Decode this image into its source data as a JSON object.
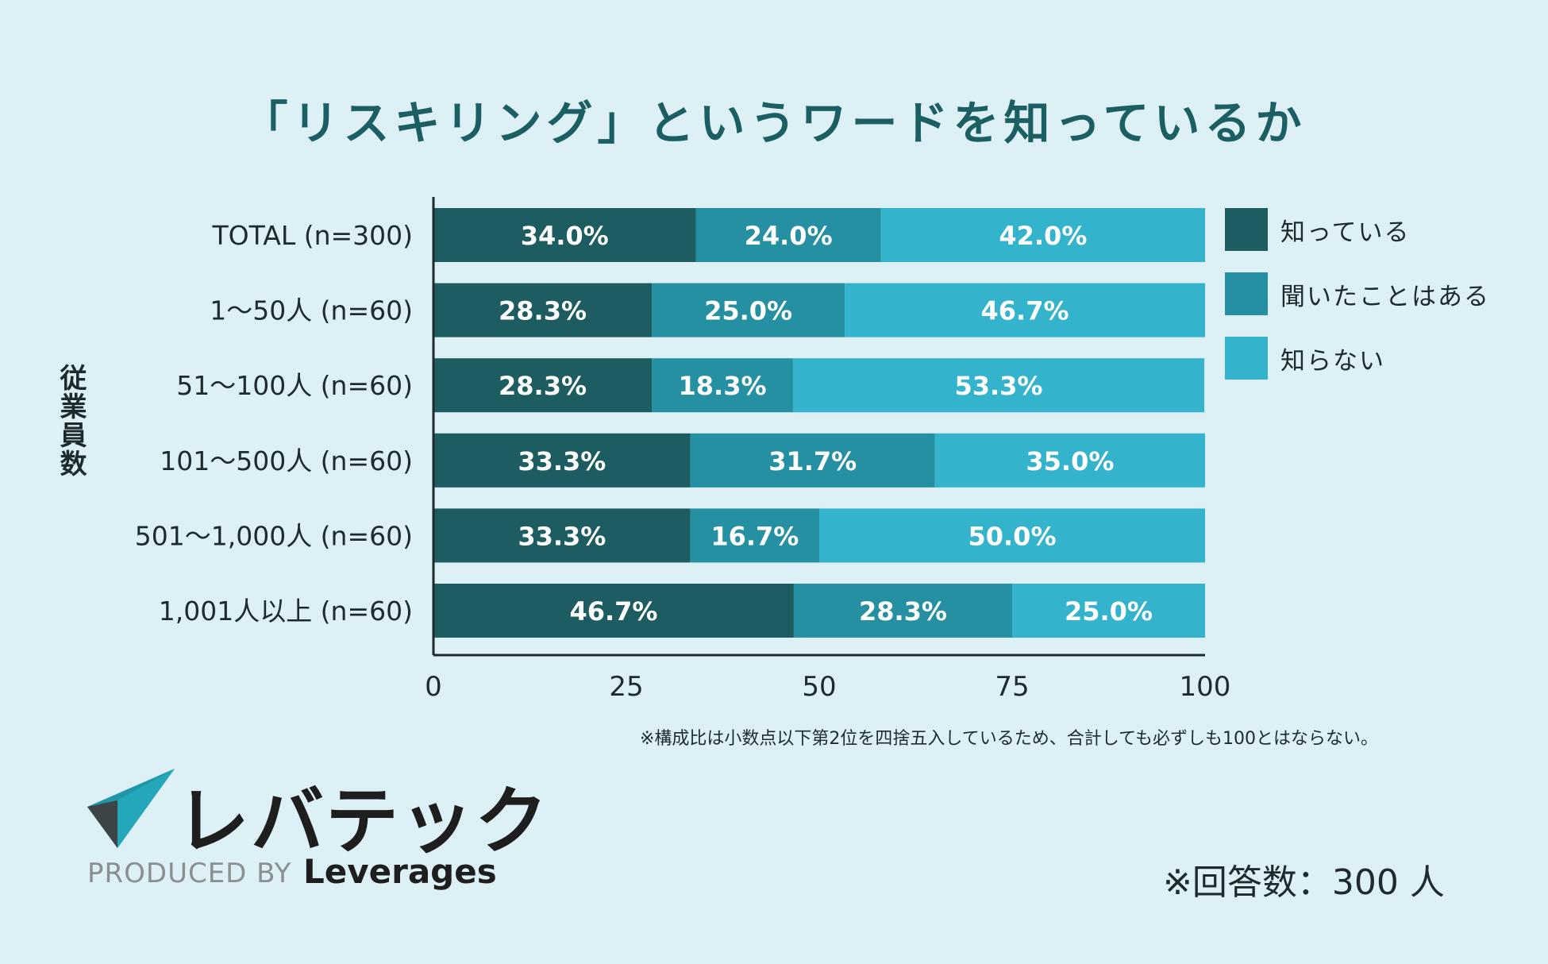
{
  "title": "「リスキリング」というワードを知っているか",
  "chart_data": {
    "type": "bar",
    "orientation": "horizontal",
    "stacked": true,
    "categories": [
      "TOTAL (n=300)",
      "1〜50人 (n=60)",
      "51〜100人 (n=60)",
      "101〜500人 (n=60)",
      "501〜1,000人 (n=60)",
      "1,001人以上 (n=60)"
    ],
    "series": [
      {
        "name": "知っている",
        "color": "#1d5c60",
        "values": [
          34.0,
          28.3,
          28.3,
          33.3,
          33.3,
          46.7
        ]
      },
      {
        "name": "聞いたことはある",
        "color": "#2590a2",
        "values": [
          24.0,
          25.0,
          18.3,
          31.7,
          16.7,
          28.3
        ]
      },
      {
        "name": "知らない",
        "color": "#33b4cc",
        "values": [
          42.0,
          46.7,
          53.3,
          35.0,
          50.0,
          25.0
        ]
      }
    ],
    "value_suffix": "%",
    "xlim": [
      0,
      100
    ],
    "xticks": [
      0,
      25,
      50,
      75,
      100
    ],
    "ylabel": "従業員数",
    "legend": "right"
  },
  "footnote": "※構成比は小数点以下第2位を四捨五入しているため、合計しても必ずしも100とはならない。",
  "respondents": "※回答数：300 人",
  "brand": {
    "name": "レバテック",
    "produced_by": "PRODUCED BY",
    "company": "Leverages"
  }
}
